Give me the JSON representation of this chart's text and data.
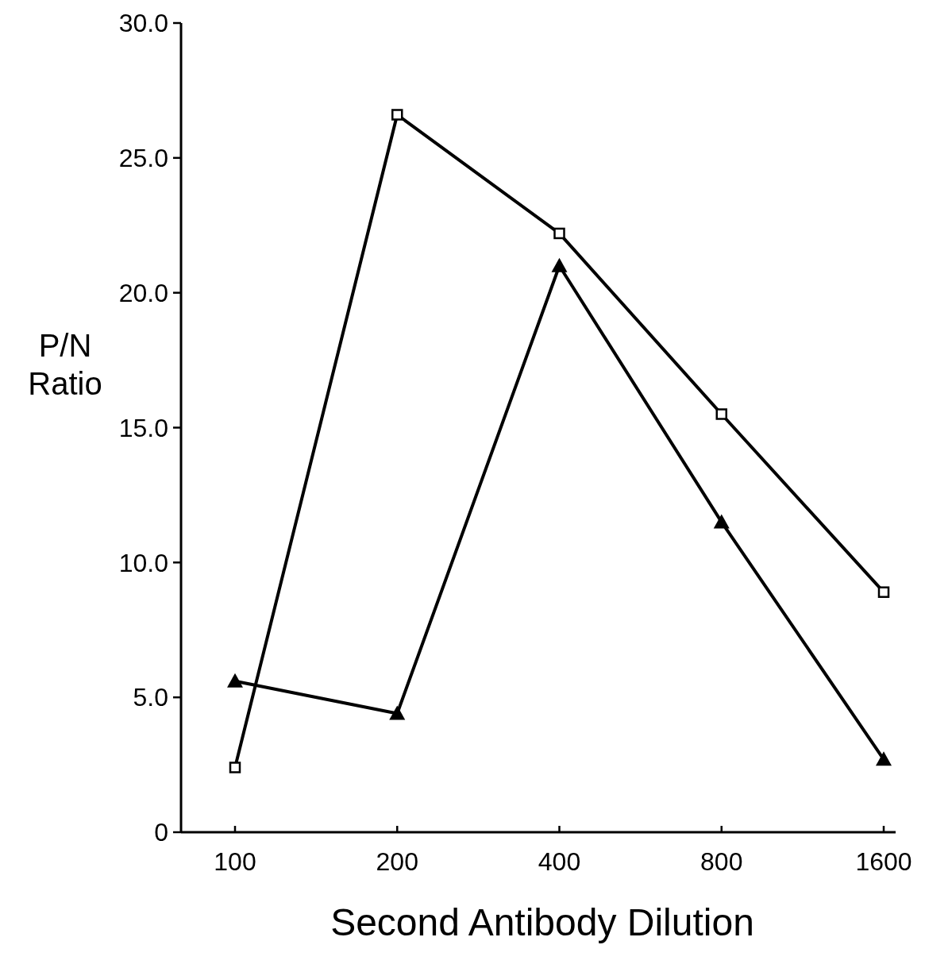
{
  "chart_data": {
    "type": "line",
    "xlabel": "Second Antibody Dilution",
    "ylabel": "P/N\nRatio",
    "categories": [
      "100",
      "200",
      "400",
      "800",
      "1600"
    ],
    "ylim": [
      0,
      30
    ],
    "yticks": [
      0,
      {
        "value": 5,
        "label": "5.0"
      },
      {
        "value": 10,
        "label": "10.0"
      },
      {
        "value": 15,
        "label": "15.0"
      },
      {
        "value": 20,
        "label": "20.0"
      },
      {
        "value": 25,
        "label": "25.0"
      },
      {
        "value": 30,
        "label": "30.0"
      }
    ],
    "grid": false,
    "line_style": "solid",
    "series": [
      {
        "color": "#000000",
        "marker": "square",
        "values": [
          2.4,
          26.6,
          22.2,
          15.5,
          8.9
        ]
      },
      {
        "color": "#000000",
        "marker": "triangle",
        "values": [
          5.6,
          4.4,
          21.0,
          11.5,
          2.7
        ]
      }
    ]
  }
}
